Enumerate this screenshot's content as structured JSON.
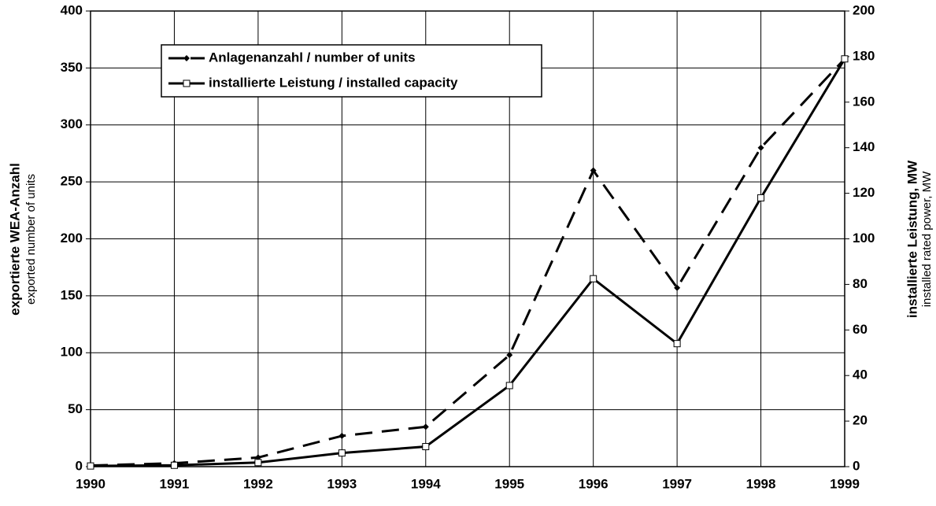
{
  "chart_data": {
    "type": "line",
    "categories": [
      "1990",
      "1991",
      "1992",
      "1993",
      "1994",
      "1995",
      "1996",
      "1997",
      "1998",
      "1999"
    ],
    "series": [
      {
        "name": "Anlagenanzahl / number of units",
        "color": "#000000",
        "dash": true,
        "axis": "y",
        "values": [
          1,
          3,
          8,
          27,
          35,
          98,
          260,
          157,
          280,
          358
        ]
      },
      {
        "name": "installierte Leistung / installed capacity",
        "color": "#000000",
        "dash": false,
        "axis": "y2",
        "values": [
          0.3,
          0.6,
          1.8,
          6,
          8.8,
          35.6,
          82.5,
          54,
          118,
          179
        ]
      }
    ],
    "ylabel": "exportierte WEA-Anzahl",
    "ysublabel": "exported number of units",
    "y2label": "installierte Leistung, MW",
    "y2sublabel": "installed rated power, MW",
    "ylim": [
      0,
      400
    ],
    "yticks": [
      0,
      50,
      100,
      150,
      200,
      250,
      300,
      350,
      400
    ],
    "y2lim": [
      0,
      200
    ],
    "y2ticks": [
      0,
      20,
      40,
      60,
      80,
      100,
      120,
      140,
      160,
      180,
      200
    ],
    "grid": true,
    "legend": "top-left"
  }
}
